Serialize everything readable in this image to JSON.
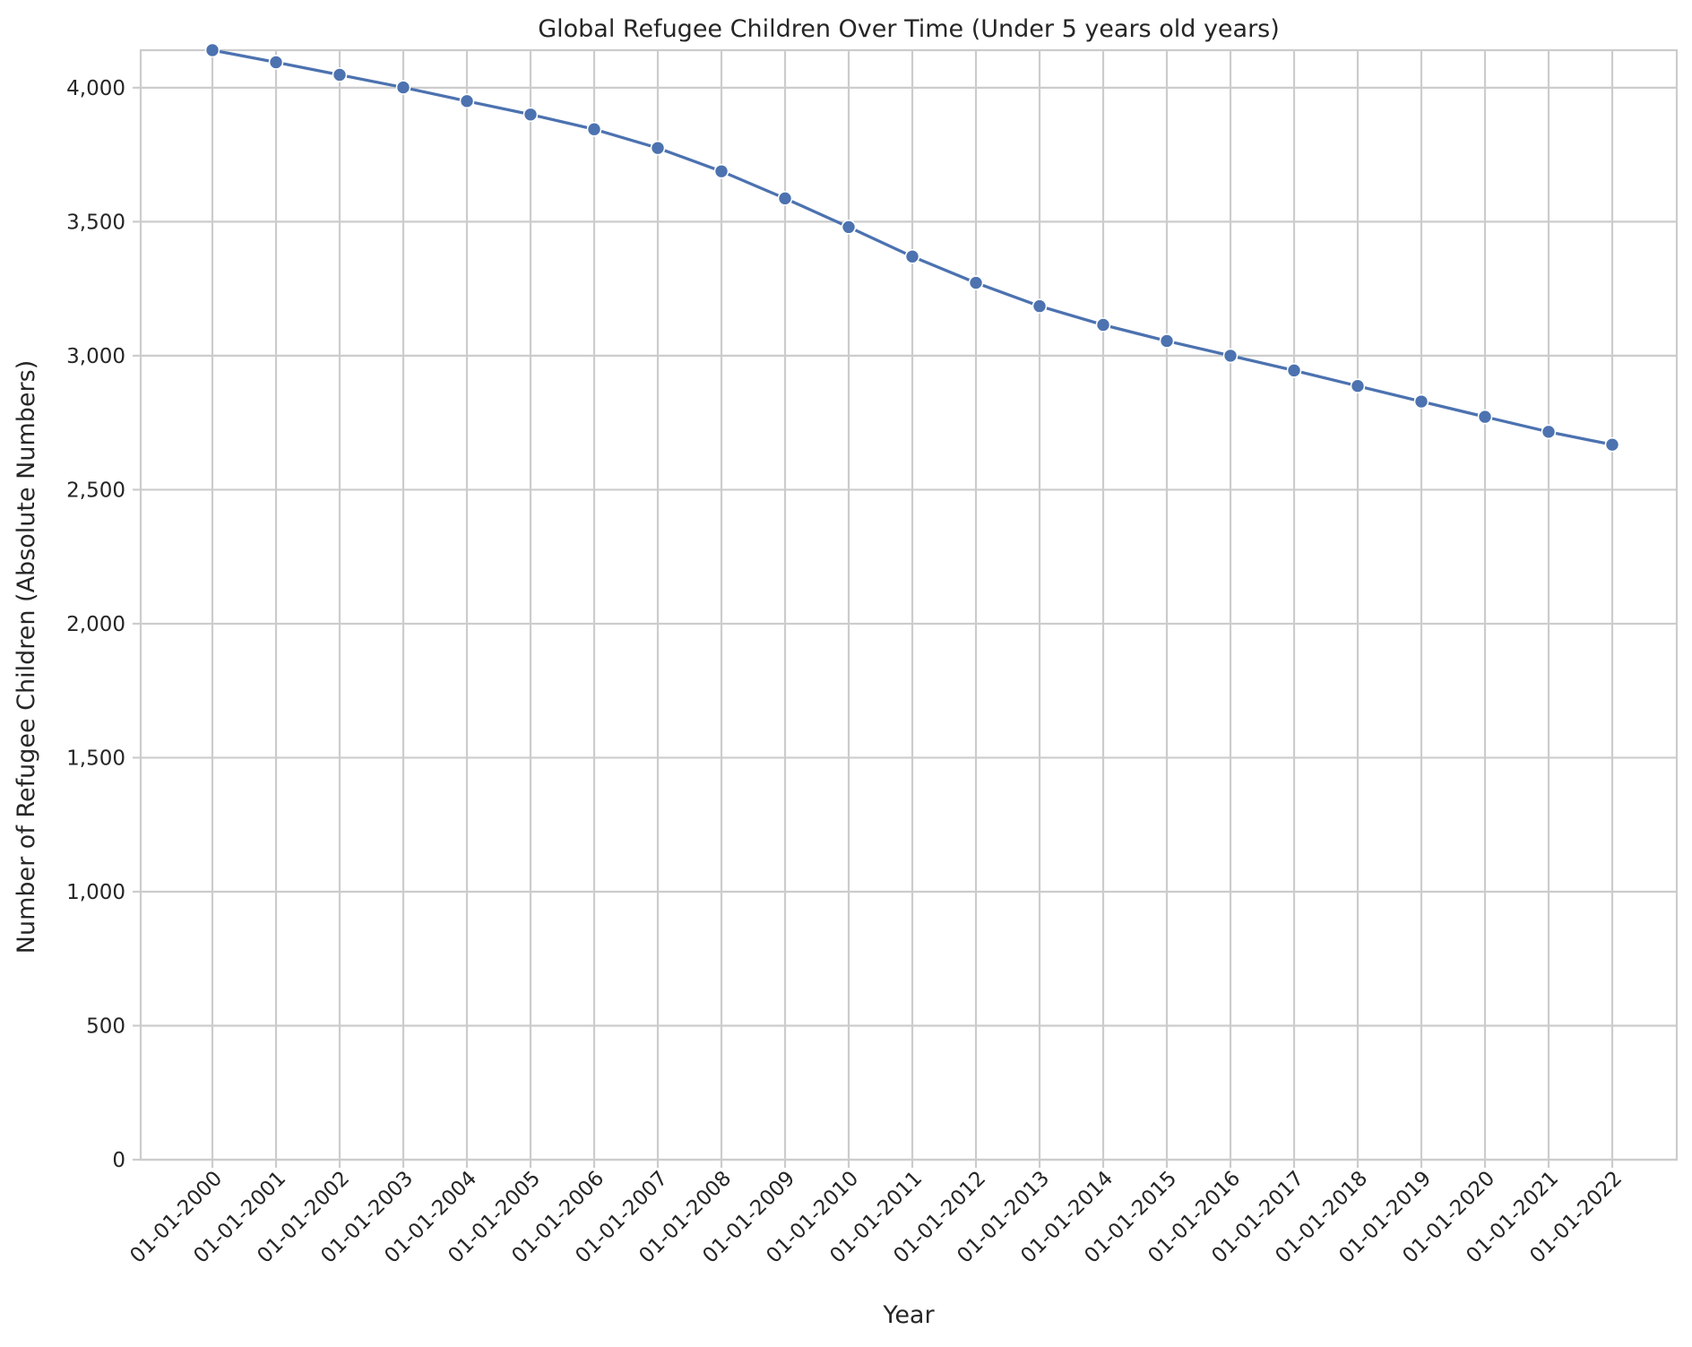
{
  "chart_data": {
    "type": "line",
    "title": "Global Refugee Children Over Time (Under 5 years old years)",
    "xlabel": "Year",
    "ylabel": "Number of Refugee Children (Absolute Numbers)",
    "categories": [
      "01-01-2000",
      "01-01-2001",
      "01-01-2002",
      "01-01-2003",
      "01-01-2004",
      "01-01-2005",
      "01-01-2006",
      "01-01-2007",
      "01-01-2008",
      "01-01-2009",
      "01-01-2010",
      "01-01-2011",
      "01-01-2012",
      "01-01-2013",
      "01-01-2014",
      "01-01-2015",
      "01-01-2016",
      "01-01-2017",
      "01-01-2018",
      "01-01-2019",
      "01-01-2020",
      "01-01-2021",
      "01-01-2022"
    ],
    "values": [
      4140,
      4095,
      4048,
      4001,
      3950,
      3900,
      3845,
      3775,
      3688,
      3587,
      3480,
      3370,
      3272,
      3185,
      3115,
      3055,
      3000,
      2945,
      2887,
      2829,
      2772,
      2716,
      2668
    ],
    "ylim": [
      0,
      4140
    ],
    "yticks": [
      0,
      500,
      1000,
      1500,
      2000,
      2500,
      3000,
      3500,
      4000
    ],
    "ytick_labels": [
      "0",
      "500",
      "1,000",
      "1,500",
      "2,000",
      "2,500",
      "3,000",
      "3,500",
      "4,000"
    ],
    "grid": true,
    "line_color": "#4c72b0",
    "marker_color": "#4c72b0",
    "marker_edge_color": "#ffffff"
  }
}
